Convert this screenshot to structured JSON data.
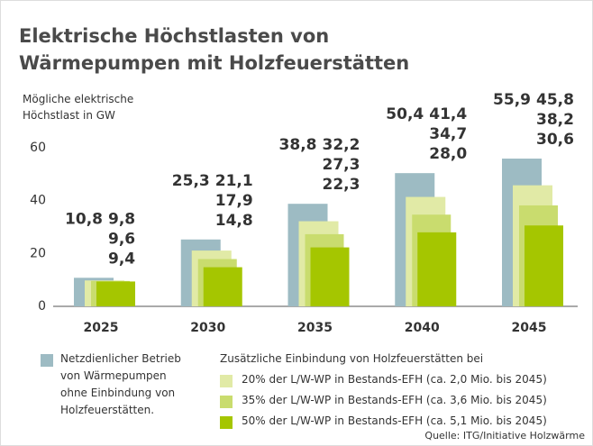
{
  "chart_data": {
    "type": "bar",
    "title": "Elektrische Höchstlasten von Wärmepumpen mit Holzfeuerstätten",
    "y_axis_label": "Mögliche elektrische Höchstlast in GW",
    "legend_title": "Zusätzliche Einbindung von Holzfeuerstätten bei",
    "source": "Quelle: ITG/Initiative Holzwärme",
    "categories": [
      "2025",
      "2030",
      "2035",
      "2040",
      "2045"
    ],
    "series": [
      {
        "name": "Netzdienlicher Betrieb von Wärmepumpen ohne Einbindung von Holzfeuerstätten.",
        "color": "#9dbbc3",
        "label_color": "#7fa2ad",
        "values": [
          10.8,
          25.3,
          38.8,
          50.4,
          55.9
        ],
        "value_labels": [
          "10,8",
          "25,3",
          "38,8",
          "50,4",
          "55,9"
        ]
      },
      {
        "name": "20% der L/W-WP in Bestands-EFH (ca. 2,0 Mio. bis 2045)",
        "color": "#e1eaa6",
        "label_color": "#c9d977",
        "values": [
          9.8,
          21.1,
          32.2,
          41.4,
          45.8
        ],
        "value_labels": [
          "9,8",
          "21,1",
          "32,2",
          "41,4",
          "45,8"
        ]
      },
      {
        "name": "35% der L/W-WP in Bestands-EFH (ca. 3,6 Mio. bis 2045)",
        "color": "#c9dc6e",
        "label_color": "#b2c84a",
        "values": [
          9.6,
          17.9,
          27.3,
          34.7,
          38.2
        ],
        "value_labels": [
          "9,6",
          "17,9",
          "27,3",
          "34,7",
          "38,2"
        ]
      },
      {
        "name": "50% der L/W-WP in Bestands-EFH (ca. 5,1 Mio. bis 2045)",
        "color": "#a5c600",
        "label_color": "#94b400",
        "values": [
          9.4,
          14.8,
          22.3,
          28.0,
          30.6
        ],
        "value_labels": [
          "9,4",
          "14,8",
          "22,3",
          "28,0",
          "30,6"
        ]
      }
    ],
    "ylim": [
      0,
      60
    ],
    "yticks": [
      0,
      20,
      40,
      60
    ],
    "grid": false
  }
}
